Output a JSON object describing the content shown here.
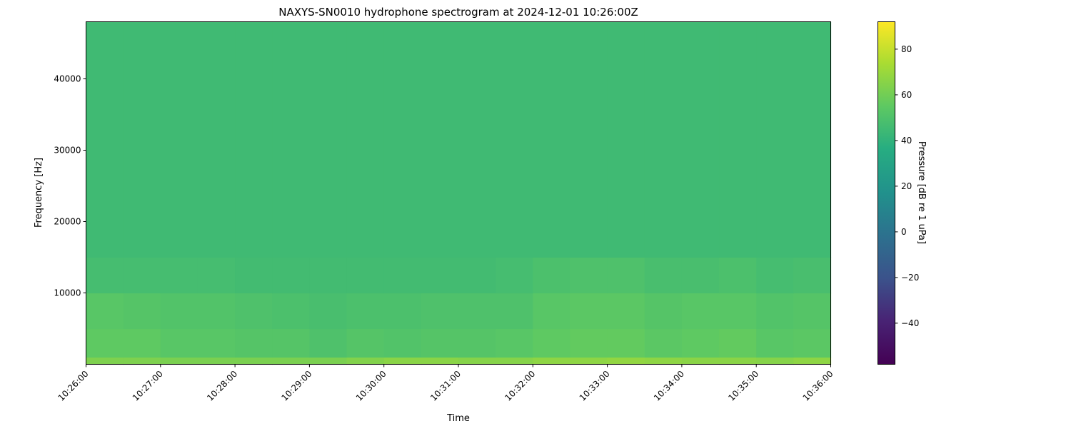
{
  "chart_data": {
    "type": "heatmap",
    "title": "NAXYS-SN0010 hydrophone spectrogram at 2024-12-01 10:26:00Z",
    "xlabel": "Time",
    "ylabel": "Frequency [Hz]",
    "colorbar_label": "Pressure [dB re 1 uPa]",
    "colormap": "viridis",
    "clim": [
      -58,
      92
    ],
    "xlim": [
      "10:26:00",
      "10:36:00"
    ],
    "ylim": [
      0,
      48000
    ],
    "x_ticks": [
      "10:26:00",
      "10:27:00",
      "10:28:00",
      "10:29:00",
      "10:30:00",
      "10:31:00",
      "10:32:00",
      "10:33:00",
      "10:34:00",
      "10:35:00",
      "10:36:00"
    ],
    "y_ticks": [
      10000,
      20000,
      30000,
      40000
    ],
    "colorbar_ticks": [
      -40,
      -20,
      0,
      20,
      40,
      60,
      80
    ],
    "grid": false,
    "time_bin_seconds": 30,
    "frequency_bands_hz": [
      [
        0,
        1000
      ],
      [
        1000,
        5000
      ],
      [
        5000,
        10000
      ],
      [
        10000,
        15000
      ],
      [
        15000,
        48000
      ]
    ],
    "values_db": [
      [
        63,
        63,
        62,
        62,
        62,
        62,
        62,
        64,
        66,
        66,
        65,
        65,
        67,
        67,
        68,
        67,
        66,
        66,
        65,
        67
      ],
      [
        55,
        55,
        53,
        53,
        52,
        52,
        50,
        52,
        51,
        52,
        52,
        53,
        55,
        56,
        56,
        54,
        55,
        56,
        53,
        54
      ],
      [
        53,
        52,
        51,
        51,
        50,
        49,
        48,
        49,
        49,
        50,
        50,
        50,
        53,
        54,
        54,
        52,
        53,
        53,
        51,
        52
      ],
      [
        47,
        47,
        47,
        47,
        46,
        46,
        46,
        46,
        46,
        46,
        46,
        47,
        49,
        50,
        50,
        48,
        48,
        49,
        47,
        48
      ],
      [
        45,
        45,
        45,
        45,
        45,
        45,
        45,
        45,
        45,
        45,
        45,
        45,
        45,
        45,
        45,
        45,
        45,
        45,
        45,
        45
      ]
    ]
  }
}
